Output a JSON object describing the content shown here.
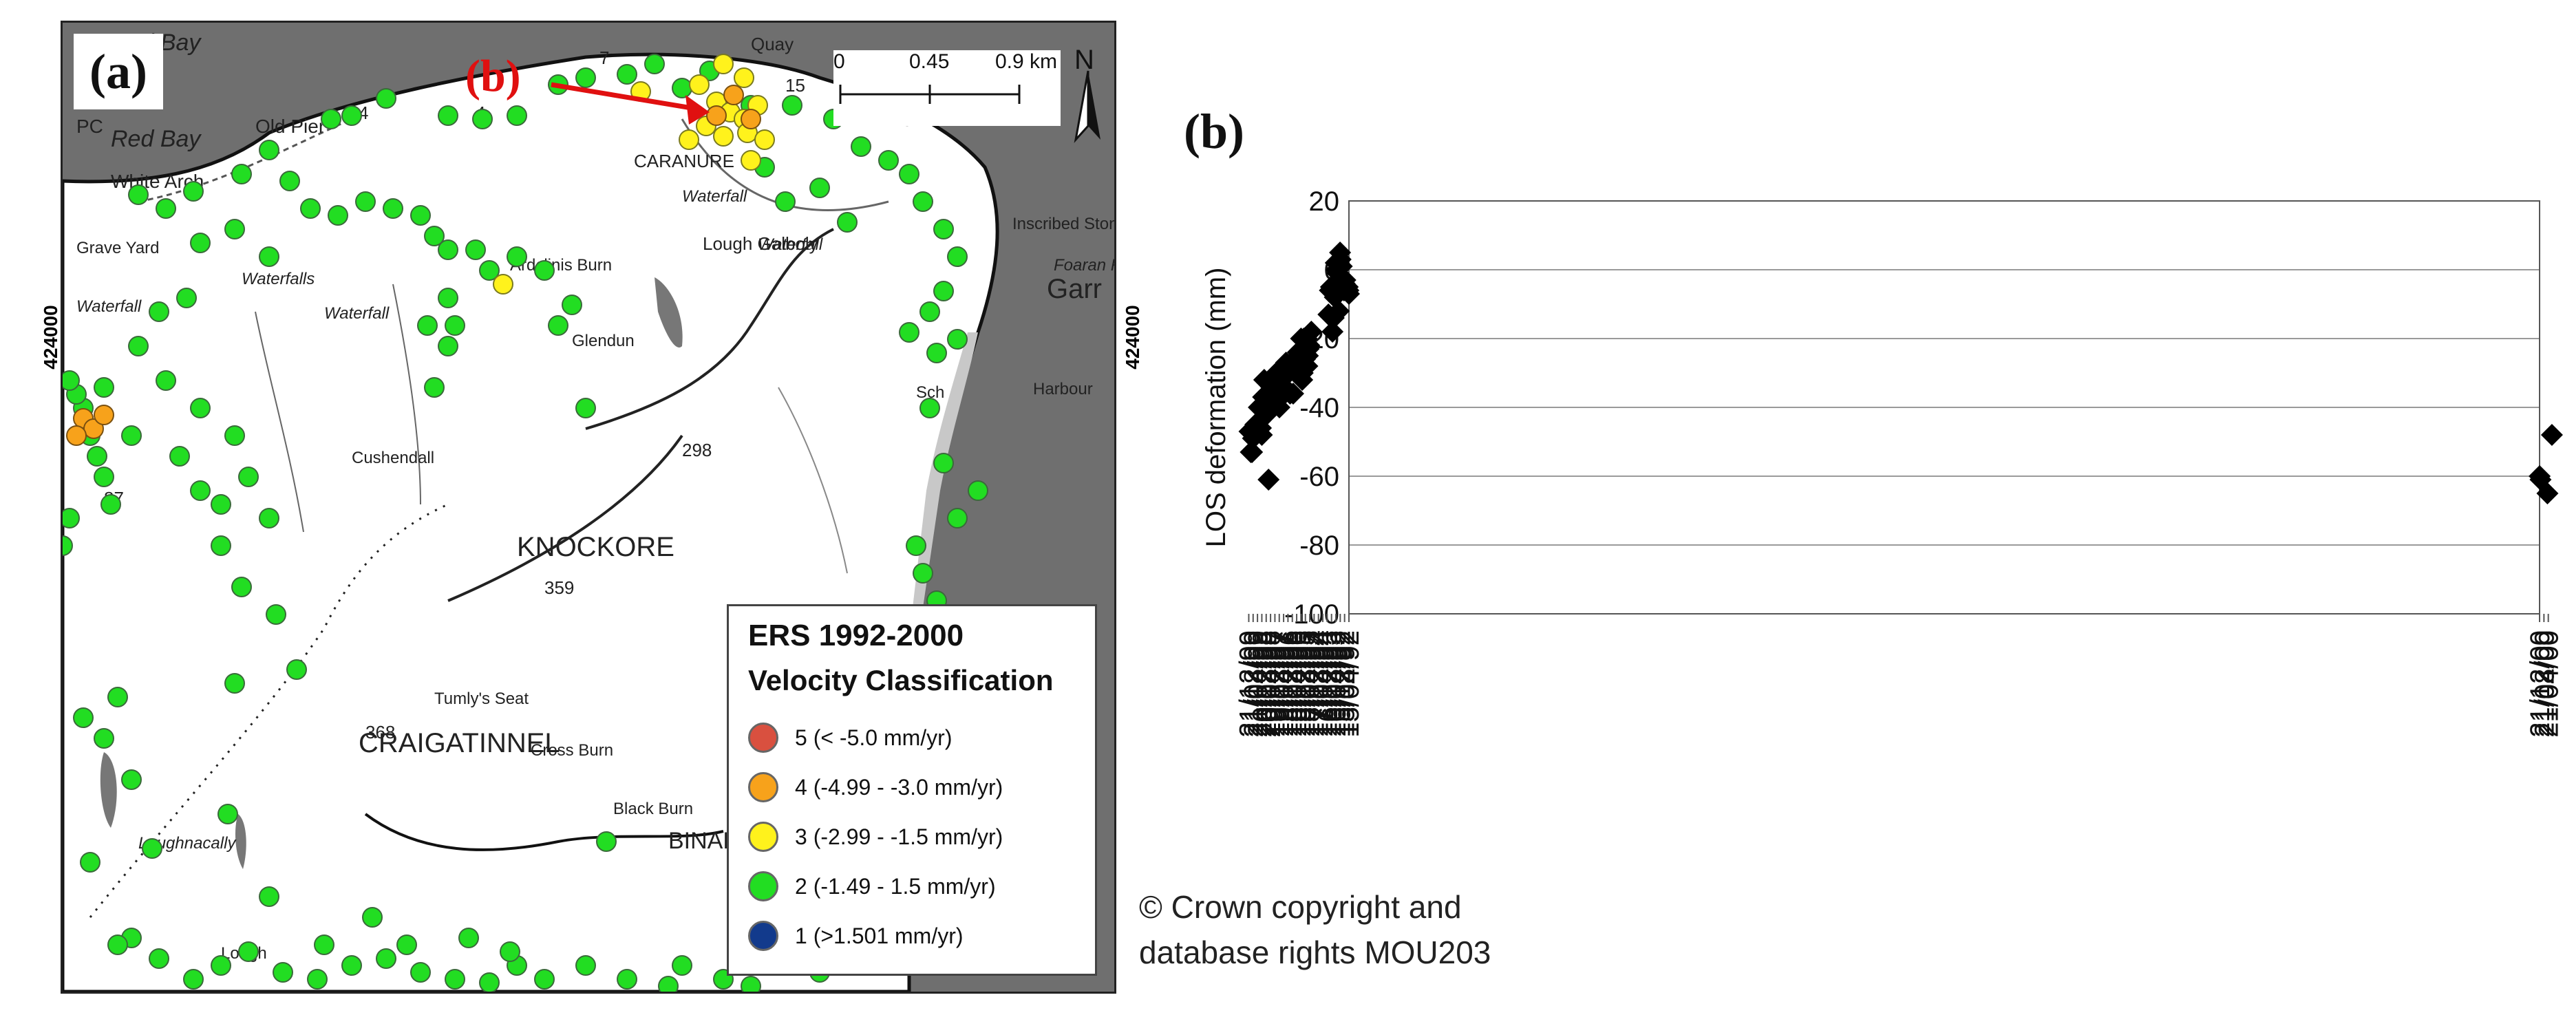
{
  "panel_a": {
    "label": "(a)",
    "arrow_label": "(b)",
    "scalebar": {
      "ticks": [
        "0",
        "0.45",
        "0.9 km"
      ]
    },
    "north": "N",
    "coordinate_label": "424000",
    "place_names": [
      "Red Bay",
      "Old Pier",
      "Red Bay",
      "White Arch",
      "PC",
      "Quay",
      "CARANURE",
      "Waterfall",
      "Waterfall",
      "Inscribed Stone",
      "Foaran Riv",
      "Garr",
      "Grave Yard",
      "Waterfall",
      "Waterfalls",
      "Waterfall",
      "Lough Galboly",
      "Harbour",
      "Sch",
      "KNOCKORE",
      "CRAIGATINNEL",
      "Loughnacally",
      "BINABAN",
      "Tumly's Seat",
      "Black Burn",
      "Cross Burn",
      "Cushendall",
      "Ardclinis Burn",
      "Glendun",
      "Lough",
      "298",
      "359",
      "368",
      "7",
      "4",
      "4",
      "15",
      "5",
      "87"
    ],
    "legend": {
      "title": "ERS  1992-2000",
      "subtitle": "Velocity Classification",
      "items": [
        {
          "label": "5 (< -5.0 mm/yr)",
          "color": "#d9503f"
        },
        {
          "label": "4 (-4.99 - -3.0 mm/yr)",
          "color": "#f7a21b"
        },
        {
          "label": "3 (-2.99 - -1.5 mm/yr)",
          "color": "#fff21c"
        },
        {
          "label": "2 (-1.49 - 1.5 mm/yr)",
          "color": "#22dd22"
        },
        {
          "label": "1 (>1.501 mm/yr)",
          "color": "#123a8c"
        }
      ]
    }
  },
  "panel_b": {
    "label": "(b)"
  },
  "copyright": [
    "© Crown copyright and",
    "database rights MOU203"
  ],
  "chart_data": {
    "type": "scatter",
    "title": "",
    "xlabel": "",
    "ylabel": "LOS deformation (mm)",
    "ylim": [
      -100,
      20
    ],
    "yticks": [
      20,
      0,
      -20,
      -40,
      -60,
      -80,
      -100
    ],
    "xlim": [
      "15/04/92",
      "21/12/00"
    ],
    "xticks": [
      "15/04/92",
      "15/08/92",
      "15/12/92",
      "16/04/93",
      "16/08/93",
      "16/12/93",
      "17/04/94",
      "17/08/94",
      "17/12/94",
      "18/04/95",
      "18/08/95",
      "18/12/95",
      "18/04/96",
      "18/08/96",
      "18/12/96",
      "19/04/97",
      "19/08/97",
      "19/12/97",
      "20/04/98",
      "20/08/98",
      "20/12/98",
      "21/04/99",
      "21/08/99",
      "21/12/99",
      "21/04/00",
      "21/08/00",
      "21/12/00"
    ],
    "grid": "horizontal",
    "marker": "diamond",
    "marker_color": "#000000",
    "points": [
      {
        "x": "15/04/92",
        "y": -7
      },
      {
        "x": "01/05/92",
        "y": -6
      },
      {
        "x": "20/05/92",
        "y": -5
      },
      {
        "x": "25/07/92",
        "y": -3
      },
      {
        "x": "15/08/92",
        "y": -4
      },
      {
        "x": "01/09/92",
        "y": -6
      },
      {
        "x": "01/11/92",
        "y": 1
      },
      {
        "x": "05/12/92",
        "y": 3
      },
      {
        "x": "20/12/92",
        "y": 5
      },
      {
        "x": "25/01/93",
        "y": -12
      },
      {
        "x": "01/03/93",
        "y": -1
      },
      {
        "x": "01/04/93",
        "y": 0
      },
      {
        "x": "20/04/93",
        "y": 2
      },
      {
        "x": "15/05/93",
        "y": -8
      },
      {
        "x": "15/06/93",
        "y": -14
      },
      {
        "x": "20/07/93",
        "y": -18
      },
      {
        "x": "01/09/93",
        "y": -5
      },
      {
        "x": "01/10/93",
        "y": -6
      },
      {
        "x": "10/11/93",
        "y": -13
      },
      {
        "x": "05/03/95",
        "y": -18
      },
      {
        "x": "01/05/95",
        "y": -22
      },
      {
        "x": "20/05/95",
        "y": -23
      },
      {
        "x": "10/06/95",
        "y": -25
      },
      {
        "x": "25/06/95",
        "y": -28
      },
      {
        "x": "15/07/95",
        "y": -20
      },
      {
        "x": "01/08/95",
        "y": -23
      },
      {
        "x": "15/08/95",
        "y": -25
      },
      {
        "x": "01/09/95",
        "y": -26
      },
      {
        "x": "15/09/95",
        "y": -23
      },
      {
        "x": "01/10/95",
        "y": -20
      },
      {
        "x": "15/10/95",
        "y": -25
      },
      {
        "x": "01/11/95",
        "y": -30
      },
      {
        "x": "15/11/95",
        "y": -32
      },
      {
        "x": "05/12/95",
        "y": -23
      },
      {
        "x": "18/12/95",
        "y": -20
      },
      {
        "x": "15/03/96",
        "y": -24
      },
      {
        "x": "15/04/96",
        "y": -26
      },
      {
        "x": "15/05/96",
        "y": -27
      },
      {
        "x": "20/06/96",
        "y": -28
      },
      {
        "x": "25/07/96",
        "y": -36
      },
      {
        "x": "15/09/96",
        "y": -27
      },
      {
        "x": "20/10/96",
        "y": -36
      },
      {
        "x": "25/11/96",
        "y": -30
      },
      {
        "x": "01/01/97",
        "y": -35
      },
      {
        "x": "10/02/97",
        "y": -27
      },
      {
        "x": "20/03/97",
        "y": -36
      },
      {
        "x": "25/04/97",
        "y": -31
      },
      {
        "x": "25/05/97",
        "y": -30
      },
      {
        "x": "01/07/97",
        "y": -31
      },
      {
        "x": "15/08/97",
        "y": -40
      },
      {
        "x": "20/09/97",
        "y": -37
      },
      {
        "x": "10/11/97",
        "y": -30
      },
      {
        "x": "20/12/97",
        "y": -36
      },
      {
        "x": "01/03/98",
        "y": -40
      },
      {
        "x": "10/04/98",
        "y": -34
      },
      {
        "x": "10/05/98",
        "y": -36
      },
      {
        "x": "15/06/98",
        "y": -61
      },
      {
        "x": "01/08/98",
        "y": -42
      },
      {
        "x": "15/09/98",
        "y": -41
      },
      {
        "x": "15/10/98",
        "y": -32
      },
      {
        "x": "15/11/98",
        "y": -37
      },
      {
        "x": "20/12/98",
        "y": -48
      },
      {
        "x": "15/01/99",
        "y": -46
      },
      {
        "x": "10/02/99",
        "y": -44
      },
      {
        "x": "15/03/99",
        "y": -40
      },
      {
        "x": "25/04/99",
        "y": -47
      },
      {
        "x": "20/05/99",
        "y": -46
      },
      {
        "x": "20/06/99",
        "y": -45
      },
      {
        "x": "25/07/99",
        "y": -48
      },
      {
        "x": "25/08/99",
        "y": -49
      },
      {
        "x": "20/09/99",
        "y": -53
      },
      {
        "x": "25/10/99",
        "y": -53
      },
      {
        "x": "01/12/99",
        "y": -47
      },
      {
        "x": "10/01/00",
        "y": -48
      },
      {
        "x": "15/05/00",
        "y": -65
      },
      {
        "x": "25/11/00",
        "y": -61
      },
      {
        "x": "20/12/00",
        "y": -60
      }
    ]
  }
}
